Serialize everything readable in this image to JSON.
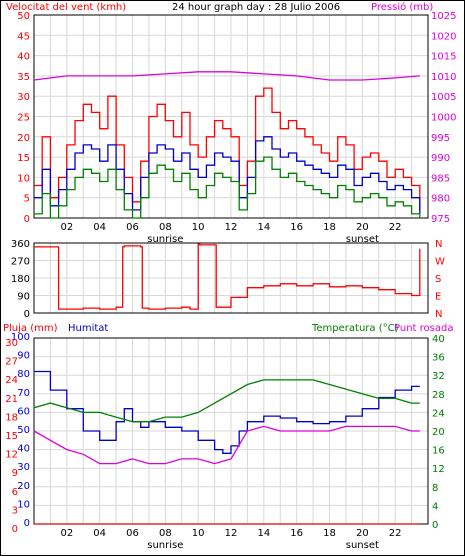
{
  "colors": {
    "red": "#ff0000",
    "darkred": "#dd0000",
    "green": "#008000",
    "blue": "#0000cc",
    "magenta": "#dd00dd",
    "grid": "#d8d8d8"
  },
  "chart_data": [
    {
      "type": "line",
      "title": "24 hour graph day : 28 Julio 2006",
      "ylabel_left": "Velocitat del vent (kmh)",
      "ylabel_right": "Pressió (mb)",
      "x_ticks": [
        "02",
        "04",
        "06",
        "08",
        "10",
        "12",
        "14",
        "16",
        "18",
        "20",
        "22"
      ],
      "x_annotations": [
        "sunrise",
        "sunset"
      ],
      "y_left_ticks": [
        "0",
        "5",
        "10",
        "15",
        "20",
        "25",
        "30",
        "35",
        "40",
        "45",
        "50"
      ],
      "y_right_ticks": [
        "975",
        "980",
        "985",
        "990",
        "995",
        "1000",
        "1005",
        "1010",
        "1015",
        "1020",
        "1025"
      ],
      "ylim_left": [
        0,
        50
      ],
      "ylim_right": [
        975,
        1025
      ],
      "series": [
        {
          "key": "gust",
          "color": "#ff0000",
          "axis": "left",
          "x": [
            0,
            0.5,
            1,
            1.5,
            2,
            2.5,
            3,
            3.5,
            4,
            4.5,
            5,
            5.5,
            6,
            6.5,
            7,
            7.5,
            8,
            8.5,
            9,
            9.5,
            10,
            10.5,
            11,
            11.5,
            12,
            12.5,
            13,
            13.5,
            14,
            14.5,
            15,
            15.5,
            16,
            16.5,
            17,
            17.5,
            18,
            18.5,
            19,
            19.5,
            20,
            20.5,
            21,
            21.5,
            22,
            22.5,
            23,
            23.5
          ],
          "values": [
            8,
            20,
            5,
            10,
            18,
            24,
            28,
            26,
            22,
            30,
            18,
            10,
            4,
            14,
            25,
            28,
            24,
            20,
            26,
            18,
            15,
            20,
            24,
            22,
            20,
            8,
            14,
            30,
            32,
            26,
            22,
            24,
            22,
            20,
            18,
            16,
            14,
            20,
            18,
            12,
            15,
            16,
            14,
            10,
            12,
            10,
            8,
            2
          ]
        },
        {
          "key": "avg",
          "color": "#0000cc",
          "axis": "left",
          "x": [
            0,
            0.5,
            1,
            1.5,
            2,
            2.5,
            3,
            3.5,
            4,
            4.5,
            5,
            5.5,
            6,
            6.5,
            7,
            7.5,
            8,
            8.5,
            9,
            9.5,
            10,
            10.5,
            11,
            11.5,
            12,
            12.5,
            13,
            13.5,
            14,
            14.5,
            15,
            15.5,
            16,
            16.5,
            17,
            17.5,
            18,
            18.5,
            19,
            19.5,
            20,
            20.5,
            21,
            21.5,
            22,
            22.5,
            23,
            23.5
          ],
          "values": [
            5,
            12,
            3,
            7,
            12,
            16,
            18,
            17,
            14,
            18,
            12,
            6,
            2,
            10,
            16,
            18,
            17,
            14,
            16,
            12,
            10,
            13,
            16,
            15,
            14,
            5,
            10,
            19,
            20,
            17,
            15,
            16,
            14,
            13,
            12,
            11,
            10,
            13,
            12,
            8,
            10,
            11,
            9,
            7,
            8,
            7,
            5,
            1
          ]
        },
        {
          "key": "min",
          "color": "#008000",
          "axis": "left",
          "x": [
            0,
            0.5,
            1,
            1.5,
            2,
            2.5,
            3,
            3.5,
            4,
            4.5,
            5,
            5.5,
            6,
            6.5,
            7,
            7.5,
            8,
            8.5,
            9,
            9.5,
            10,
            10.5,
            11,
            11.5,
            12,
            12.5,
            13,
            13.5,
            14,
            14.5,
            15,
            15.5,
            16,
            16.5,
            17,
            17.5,
            18,
            18.5,
            19,
            19.5,
            20,
            20.5,
            21,
            21.5,
            22,
            22.5,
            23,
            23.5
          ],
          "values": [
            1,
            6,
            0,
            3,
            7,
            10,
            12,
            11,
            9,
            12,
            7,
            2,
            0,
            5,
            11,
            13,
            12,
            9,
            11,
            7,
            5,
            8,
            11,
            10,
            9,
            2,
            6,
            14,
            15,
            12,
            10,
            11,
            9,
            8,
            7,
            6,
            5,
            8,
            7,
            4,
            5,
            6,
            5,
            3,
            4,
            3,
            1,
            0
          ]
        },
        {
          "key": "pressure",
          "color": "#dd00dd",
          "axis": "right",
          "x": [
            0,
            2,
            4,
            6,
            8,
            10,
            12,
            14,
            16,
            18,
            19,
            20,
            22,
            23.5
          ],
          "values": [
            1009,
            1010,
            1010,
            1010,
            1010.5,
            1011,
            1011,
            1010.5,
            1010,
            1009,
            1009,
            1009,
            1009.5,
            1010
          ]
        }
      ]
    },
    {
      "type": "line",
      "title": "",
      "y_left_ticks": [
        "0",
        "90",
        "180",
        "270",
        "360"
      ],
      "y_right_ticks": [
        "N",
        "E",
        "S",
        "W",
        "N"
      ],
      "ylim": [
        0,
        360
      ],
      "series": [
        {
          "key": "direction",
          "color": "#ff0000",
          "x": [
            0,
            1.4,
            1.5,
            2,
            3,
            4,
            5,
            5.4,
            5.5,
            6.5,
            6.6,
            7,
            8,
            9,
            9.5,
            10,
            10.1,
            11,
            11.1,
            12,
            13,
            14,
            15,
            16,
            17,
            18,
            19,
            20,
            21,
            22,
            23,
            23.4,
            23.5
          ],
          "values": [
            340,
            340,
            20,
            20,
            25,
            20,
            30,
            340,
            345,
            340,
            25,
            20,
            25,
            30,
            20,
            355,
            350,
            350,
            30,
            80,
            130,
            140,
            150,
            140,
            150,
            135,
            140,
            130,
            120,
            100,
            90,
            90,
            330
          ]
        }
      ]
    },
    {
      "type": "line",
      "title": "",
      "ylabel_left_1": "Pluja (mm)",
      "ylabel_left_2": "Humitat",
      "ylabel_right": "Temperatura (°C)",
      "ylabel_right_2": "Punt rosada",
      "y_left_ticks": [
        "0",
        "10",
        "20",
        "30",
        "40",
        "50",
        "60",
        "70",
        "80",
        "90",
        "100"
      ],
      "y_left2_ticks": [
        "0",
        "3",
        "6",
        "9",
        "12",
        "15",
        "18",
        "21",
        "24",
        "27",
        "30"
      ],
      "y_right_ticks": [
        "0",
        "4",
        "8",
        "12",
        "16",
        "20",
        "24",
        "28",
        "32",
        "36",
        "40"
      ],
      "ylim_left": [
        0,
        100
      ],
      "ylim_right": [
        0,
        40
      ],
      "series": [
        {
          "key": "humidity",
          "color": "#0000cc",
          "axis": "left",
          "x": [
            0,
            1,
            2,
            3,
            4,
            5,
            5.5,
            6,
            6.5,
            7,
            8,
            9,
            10,
            11,
            11.5,
            12,
            12.5,
            13,
            14,
            15,
            16,
            17,
            18,
            19,
            20,
            21,
            22,
            23,
            23.5
          ],
          "values": [
            82,
            72,
            62,
            50,
            45,
            55,
            62,
            55,
            52,
            55,
            52,
            50,
            45,
            40,
            38,
            42,
            50,
            55,
            58,
            57,
            55,
            54,
            55,
            58,
            62,
            68,
            72,
            74,
            74
          ]
        },
        {
          "key": "temperature",
          "color": "#008000",
          "axis": "right",
          "x": [
            0,
            1,
            2,
            3,
            4,
            5,
            6,
            7,
            8,
            9,
            10,
            11,
            12,
            13,
            14,
            15,
            16,
            17,
            18,
            19,
            20,
            21,
            22,
            23,
            23.5
          ],
          "values": [
            25,
            26,
            25,
            24,
            24,
            23,
            22,
            22,
            23,
            23,
            24,
            26,
            28,
            30,
            31,
            31,
            31,
            31,
            30,
            29,
            28,
            27,
            27,
            26,
            26
          ]
        },
        {
          "key": "dewpoint",
          "color": "#dd00dd",
          "axis": "right",
          "x": [
            0,
            1,
            2,
            3,
            4,
            5,
            6,
            7,
            8,
            9,
            10,
            11,
            12,
            12.5,
            13,
            14,
            15,
            16,
            17,
            18,
            19,
            20,
            21,
            22,
            23,
            23.5
          ],
          "values": [
            20,
            18,
            16,
            15,
            13,
            13,
            14,
            13,
            13,
            14,
            14,
            13,
            14,
            17,
            20,
            21,
            20,
            20,
            20,
            20,
            21,
            21,
            21,
            21,
            20,
            20
          ]
        },
        {
          "key": "rain",
          "color": "#dd0000",
          "axis": "left",
          "x": [
            0,
            23.5
          ],
          "values": [
            0,
            0
          ]
        }
      ]
    }
  ]
}
